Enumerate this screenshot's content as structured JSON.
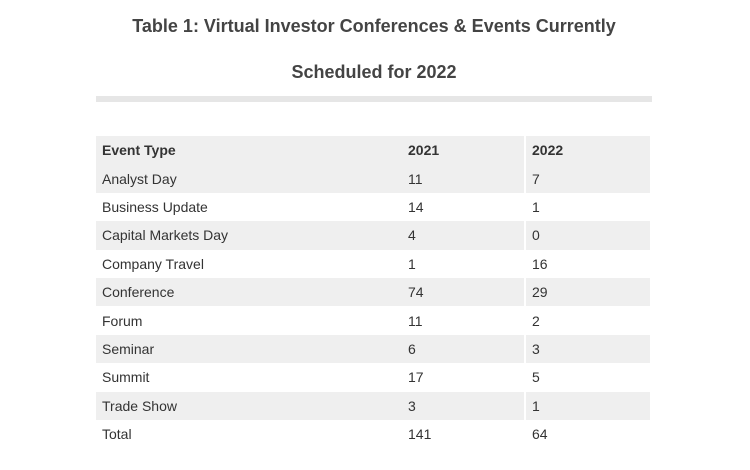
{
  "title": {
    "line1": "Table 1: Virtual Investor Conferences & Events Currently",
    "line2": "Scheduled for 2022"
  },
  "table": {
    "headers": [
      "Event Type",
      "2021",
      "2022"
    ],
    "rows": [
      [
        "Analyst Day",
        "11",
        "7"
      ],
      [
        "Business Update",
        "14",
        "1"
      ],
      [
        "Capital Markets Day",
        "4",
        "0"
      ],
      [
        "Company Travel",
        "1",
        "16"
      ],
      [
        "Conference",
        "74",
        "29"
      ],
      [
        "Forum",
        "11",
        "2"
      ],
      [
        "Seminar",
        "6",
        "3"
      ],
      [
        "Summit",
        "17",
        "5"
      ],
      [
        "Trade Show",
        "3",
        "1"
      ],
      [
        "Total",
        "141",
        "64"
      ]
    ]
  }
}
